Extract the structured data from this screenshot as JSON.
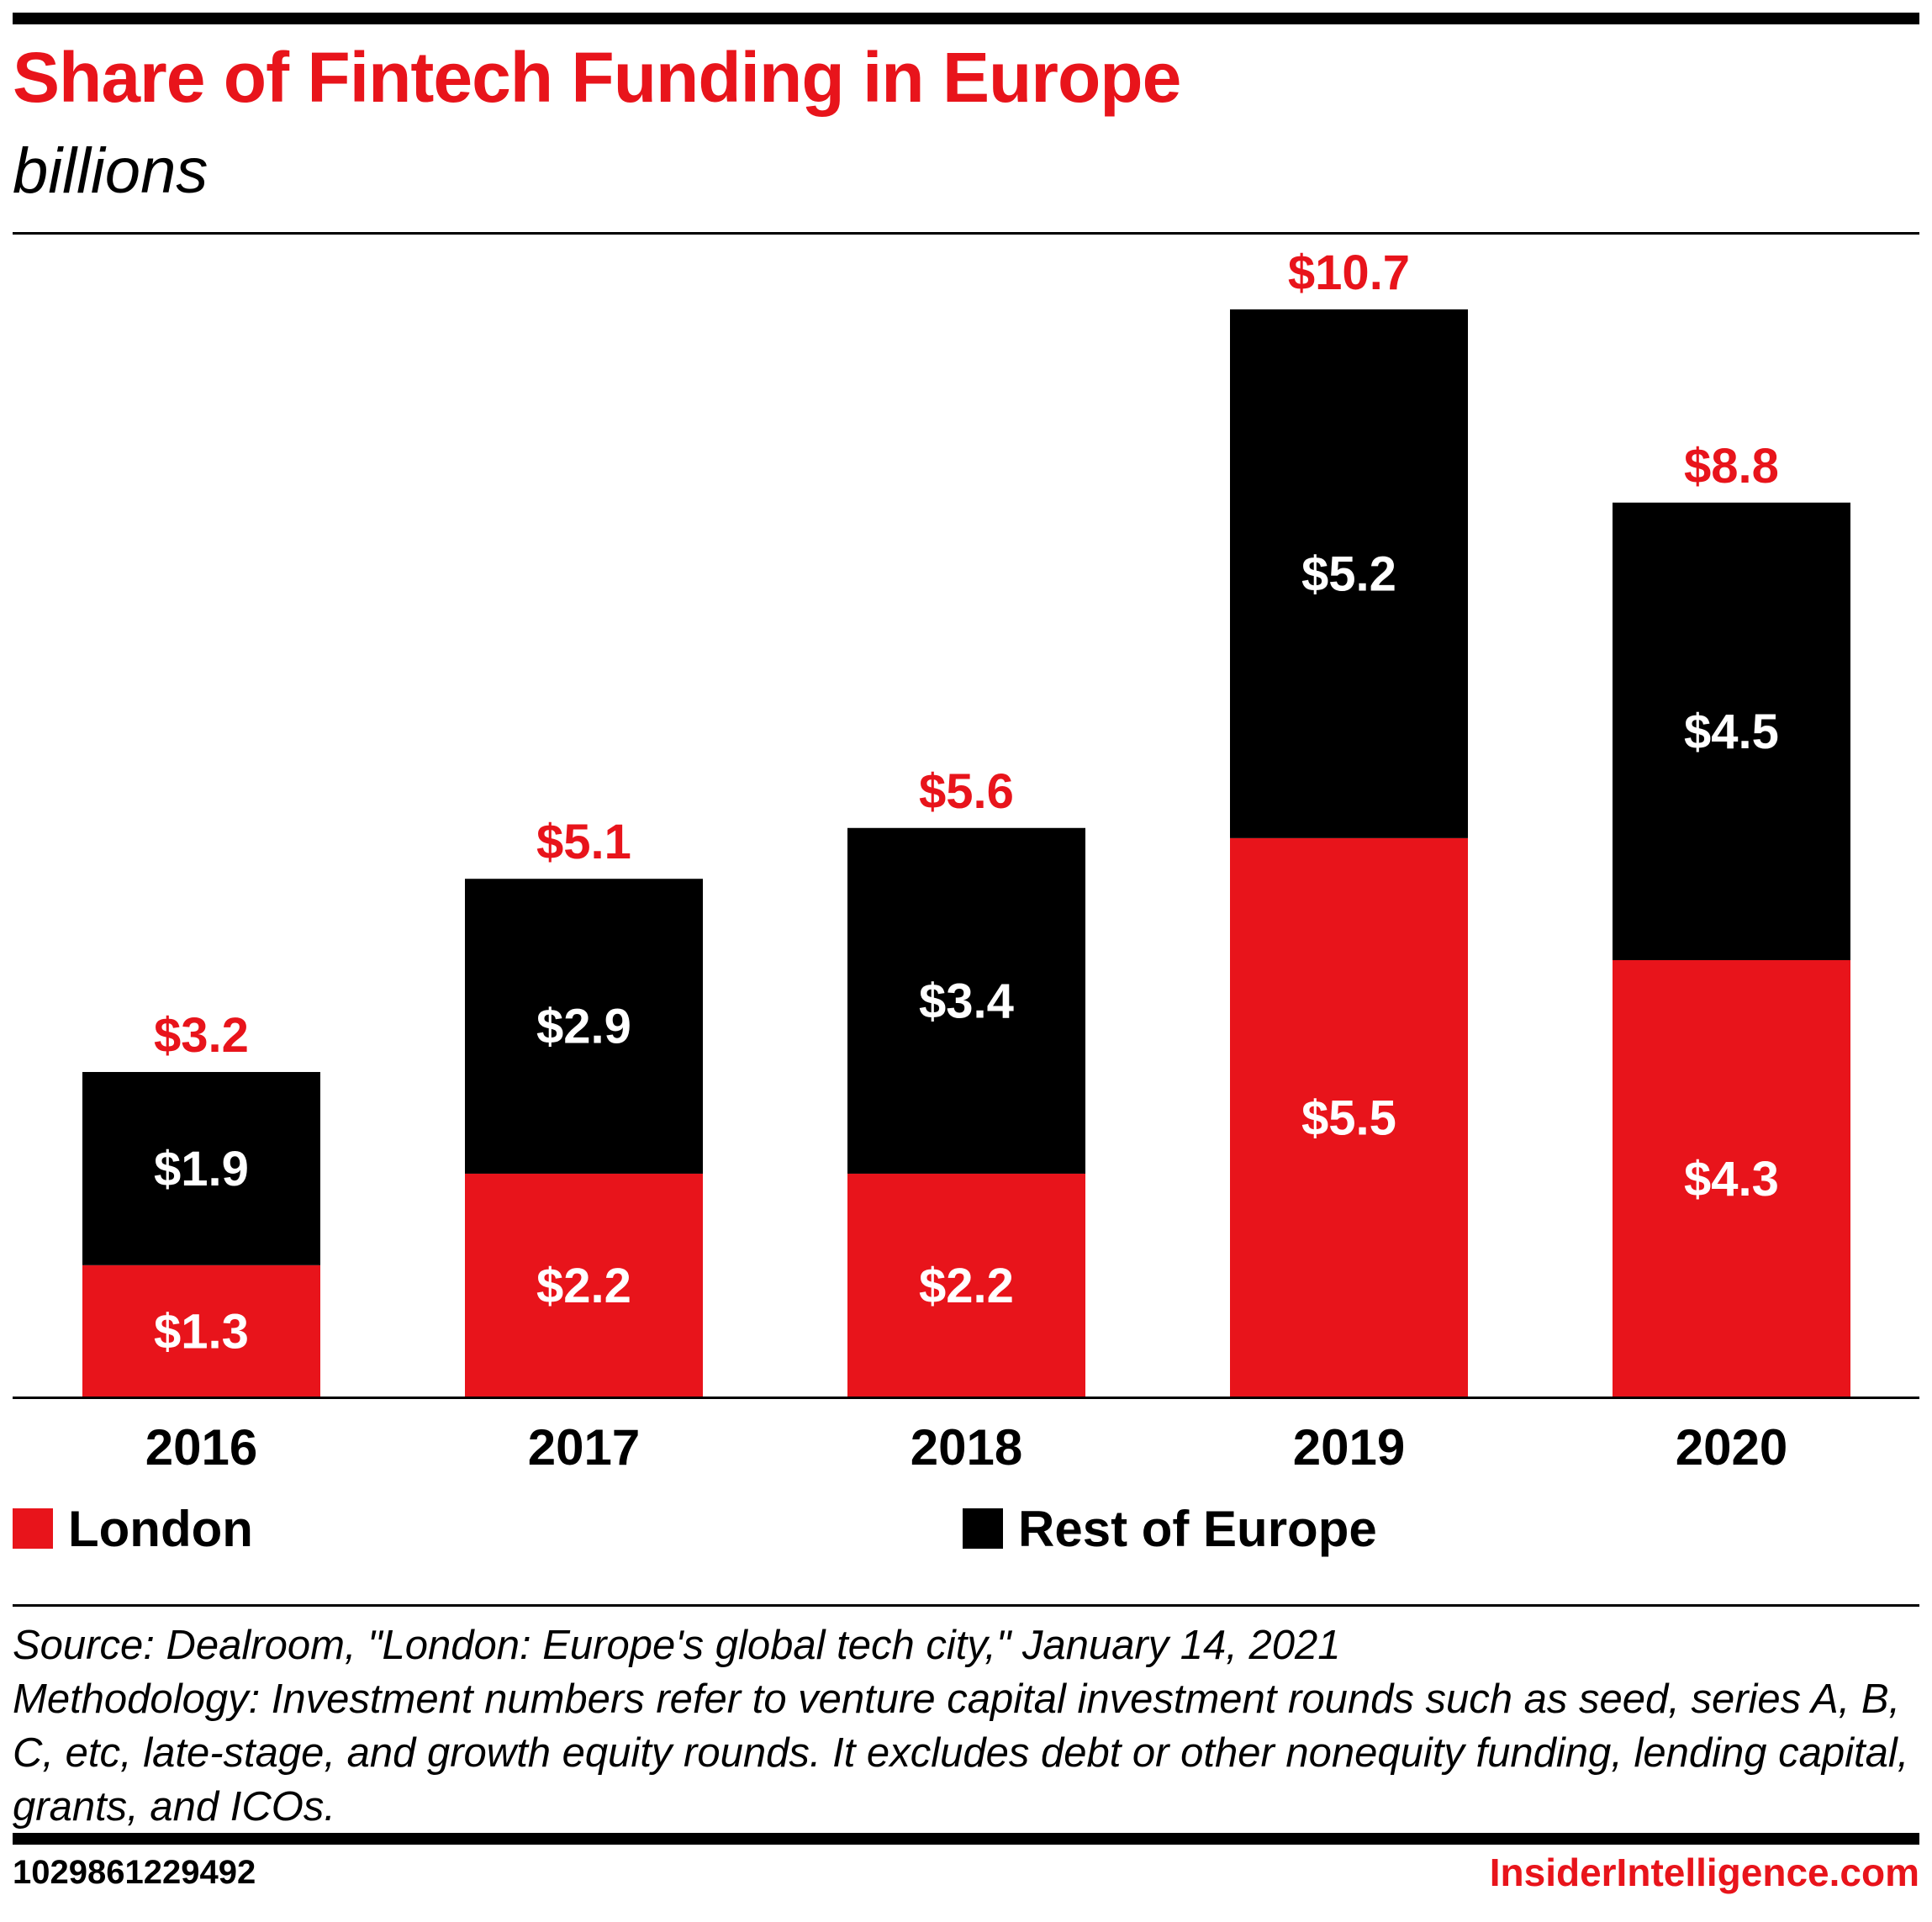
{
  "title": "Share of Fintech Funding in Europe",
  "subtitle": "billions",
  "colors": {
    "london": "#e8141b",
    "rest_of_europe": "#000000",
    "total_label": "#e8141b",
    "inner_label": "#ffffff"
  },
  "chart_data": {
    "type": "bar",
    "stacked": true,
    "title": "Share of Fintech Funding in Europe",
    "ylabel": "billions",
    "xlabel": "",
    "ylim": [
      0,
      10.7
    ],
    "categories": [
      "2016",
      "2017",
      "2018",
      "2019",
      "2020"
    ],
    "series": [
      {
        "name": "London",
        "values": [
          1.3,
          2.2,
          2.2,
          5.5,
          4.3
        ],
        "labels": [
          "$1.3",
          "$2.2",
          "$2.2",
          "$5.5",
          "$4.3"
        ]
      },
      {
        "name": "Rest of Europe",
        "values": [
          1.9,
          2.9,
          3.4,
          5.2,
          4.5
        ],
        "labels": [
          "$1.9",
          "$2.9",
          "$3.4",
          "$5.2",
          "$4.5"
        ]
      }
    ],
    "totals": [
      3.2,
      5.1,
      5.6,
      10.7,
      8.8
    ],
    "total_labels": [
      "$3.2",
      "$5.1",
      "$5.6",
      "$10.7",
      "$8.8"
    ],
    "legend": [
      "London",
      "Rest of Europe"
    ],
    "legend_position": "bottom",
    "grid": false
  },
  "legend": {
    "london": "London",
    "rest_of_europe": "Rest of Europe"
  },
  "source": "Source: Dealroom, \"London: Europe's global tech city,\" January 14, 2021",
  "methodology": "Methodology: Investment numbers refer to venture capital investment rounds such as seed, series A, B, C, etc, late-stage, and growth equity rounds. It excludes debt or other nonequity funding, lending capital, grants, and ICOs.",
  "chart_id": "1029861229492",
  "brand": "InsiderIntelligence.com"
}
